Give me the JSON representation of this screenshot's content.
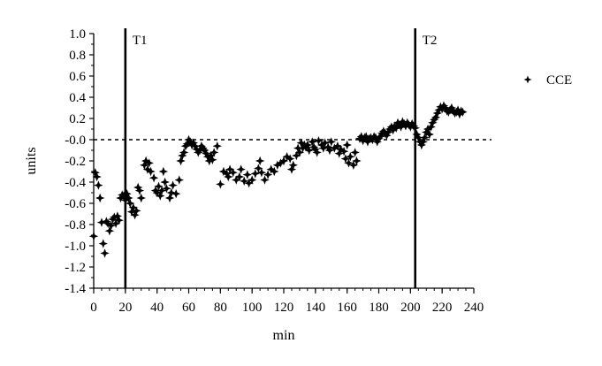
{
  "chart_data": {
    "type": "scatter",
    "xlabel": "min",
    "ylabel": "units",
    "xlim": [
      0,
      240
    ],
    "ylim": [
      -1.4,
      1.0
    ],
    "x_ticks": [
      "0",
      "20",
      "40",
      "60",
      "80",
      "100",
      "120",
      "140",
      "160",
      "180",
      "200",
      "220",
      "240"
    ],
    "y_ticks": [
      "1.0",
      "0.8",
      "0.6",
      "0.4",
      "0.2",
      "-0.0",
      "-0.2",
      "-0.4",
      "-0.6",
      "-0.8",
      "-1.0",
      "-1.2",
      "-1.4"
    ],
    "reference_line": {
      "y": 0.0,
      "style": "dotted"
    },
    "markers": [
      {
        "label": "T1",
        "x": 20
      },
      {
        "label": "T2",
        "x": 203
      }
    ],
    "legend_position": "right",
    "series": [
      {
        "name": "CCE",
        "color": "#000000",
        "marker": "four-point-star",
        "points": [
          [
            0,
            -0.91
          ],
          [
            1,
            -0.31
          ],
          [
            2,
            -0.35
          ],
          [
            3,
            -0.43
          ],
          [
            4,
            -0.55
          ],
          [
            5,
            -0.78
          ],
          [
            6,
            -0.98
          ],
          [
            7,
            -1.07
          ],
          [
            8,
            -0.77
          ],
          [
            9,
            -0.79
          ],
          [
            10,
            -0.86
          ],
          [
            11,
            -0.81
          ],
          [
            12,
            -0.75
          ],
          [
            13,
            -0.73
          ],
          [
            14,
            -0.79
          ],
          [
            15,
            -0.72
          ],
          [
            16,
            -0.76
          ],
          [
            17,
            -0.55
          ],
          [
            18,
            -0.52
          ],
          [
            19,
            -0.53
          ],
          [
            20,
            -0.57
          ],
          [
            21,
            -0.51
          ],
          [
            22,
            -0.55
          ],
          [
            23,
            -0.6
          ],
          [
            24,
            -0.68
          ],
          [
            25,
            -0.64
          ],
          [
            26,
            -0.71
          ],
          [
            27,
            -0.67
          ],
          [
            28,
            -0.45
          ],
          [
            29,
            -0.48
          ],
          [
            30,
            -0.55
          ],
          [
            32,
            -0.24
          ],
          [
            33,
            -0.2
          ],
          [
            34,
            -0.28
          ],
          [
            35,
            -0.22
          ],
          [
            36,
            -0.3
          ],
          [
            38,
            -0.36
          ],
          [
            39,
            -0.48
          ],
          [
            40,
            -0.5
          ],
          [
            41,
            -0.44
          ],
          [
            42,
            -0.53
          ],
          [
            43,
            -0.48
          ],
          [
            44,
            -0.3
          ],
          [
            45,
            -0.4
          ],
          [
            46,
            -0.46
          ],
          [
            48,
            -0.55
          ],
          [
            49,
            -0.5
          ],
          [
            50,
            -0.43
          ],
          [
            52,
            -0.51
          ],
          [
            54,
            -0.38
          ],
          [
            55,
            -0.2
          ],
          [
            56,
            -0.15
          ],
          [
            57,
            -0.12
          ],
          [
            58,
            -0.06
          ],
          [
            59,
            -0.04
          ],
          [
            60,
            0.0
          ],
          [
            61,
            -0.02
          ],
          [
            62,
            -0.05
          ],
          [
            63,
            -0.03
          ],
          [
            64,
            -0.06
          ],
          [
            65,
            -0.09
          ],
          [
            66,
            -0.12
          ],
          [
            67,
            -0.1
          ],
          [
            68,
            -0.06
          ],
          [
            69,
            -0.08
          ],
          [
            70,
            -0.1
          ],
          [
            71,
            -0.13
          ],
          [
            72,
            -0.16
          ],
          [
            73,
            -0.2
          ],
          [
            74,
            -0.15
          ],
          [
            75,
            -0.19
          ],
          [
            76,
            -0.12
          ],
          [
            78,
            -0.06
          ],
          [
            80,
            -0.42
          ],
          [
            82,
            -0.3
          ],
          [
            84,
            -0.32
          ],
          [
            85,
            -0.35
          ],
          [
            86,
            -0.28
          ],
          [
            88,
            -0.31
          ],
          [
            90,
            -0.38
          ],
          [
            92,
            -0.35
          ],
          [
            93,
            -0.28
          ],
          [
            95,
            -0.39
          ],
          [
            97,
            -0.33
          ],
          [
            98,
            -0.41
          ],
          [
            100,
            -0.38
          ],
          [
            102,
            -0.32
          ],
          [
            104,
            -0.27
          ],
          [
            105,
            -0.2
          ],
          [
            106,
            -0.31
          ],
          [
            108,
            -0.38
          ],
          [
            110,
            -0.33
          ],
          [
            112,
            -0.28
          ],
          [
            114,
            -0.3
          ],
          [
            116,
            -0.24
          ],
          [
            118,
            -0.22
          ],
          [
            120,
            -0.2
          ],
          [
            122,
            -0.16
          ],
          [
            124,
            -0.18
          ],
          [
            125,
            -0.28
          ],
          [
            126,
            -0.24
          ],
          [
            128,
            -0.15
          ],
          [
            129,
            -0.08
          ],
          [
            130,
            -0.12
          ],
          [
            131,
            -0.03
          ],
          [
            132,
            -0.08
          ],
          [
            133,
            -0.05
          ],
          [
            134,
            -0.07
          ],
          [
            135,
            -0.05
          ],
          [
            136,
            -0.1
          ],
          [
            138,
            -0.02
          ],
          [
            139,
            -0.07
          ],
          [
            140,
            -0.09
          ],
          [
            141,
            -0.12
          ],
          [
            142,
            -0.01
          ],
          [
            144,
            -0.05
          ],
          [
            145,
            -0.08
          ],
          [
            146,
            -0.03
          ],
          [
            148,
            -0.07
          ],
          [
            149,
            -0.1
          ],
          [
            150,
            -0.02
          ],
          [
            152,
            -0.08
          ],
          [
            154,
            -0.06
          ],
          [
            155,
            -0.13
          ],
          [
            156,
            -0.09
          ],
          [
            158,
            -0.11
          ],
          [
            159,
            -0.18
          ],
          [
            160,
            -0.05
          ],
          [
            161,
            -0.22
          ],
          [
            162,
            -0.16
          ],
          [
            164,
            -0.24
          ],
          [
            165,
            -0.12
          ],
          [
            166,
            -0.2
          ],
          [
            168,
            0.01
          ],
          [
            169,
            0.03
          ],
          [
            170,
            -0.01
          ],
          [
            171,
            0.02
          ],
          [
            172,
            0.03
          ],
          [
            173,
            -0.02
          ],
          [
            174,
            0.01
          ],
          [
            175,
            0.02
          ],
          [
            176,
            0.0
          ],
          [
            177,
            0.03
          ],
          [
            178,
            0.02
          ],
          [
            179,
            -0.02
          ],
          [
            180,
            0.01
          ],
          [
            181,
            0.03
          ],
          [
            182,
            0.06
          ],
          [
            183,
            0.08
          ],
          [
            184,
            0.06
          ],
          [
            185,
            0.04
          ],
          [
            186,
            0.07
          ],
          [
            187,
            0.1
          ],
          [
            188,
            0.12
          ],
          [
            189,
            0.09
          ],
          [
            190,
            0.13
          ],
          [
            191,
            0.11
          ],
          [
            192,
            0.16
          ],
          [
            193,
            0.14
          ],
          [
            194,
            0.12
          ],
          [
            195,
            0.17
          ],
          [
            196,
            0.15
          ],
          [
            197,
            0.13
          ],
          [
            198,
            0.16
          ],
          [
            199,
            0.14
          ],
          [
            200,
            0.12
          ],
          [
            201,
            0.15
          ],
          [
            202,
            0.13
          ],
          [
            203,
            0.11
          ],
          [
            204,
            0.05
          ],
          [
            205,
            0.02
          ],
          [
            206,
            -0.02
          ],
          [
            207,
            -0.05
          ],
          [
            208,
            -0.02
          ],
          [
            209,
            0.02
          ],
          [
            210,
            0.07
          ],
          [
            211,
            0.1
          ],
          [
            212,
            0.05
          ],
          [
            213,
            0.12
          ],
          [
            214,
            0.16
          ],
          [
            215,
            0.19
          ],
          [
            216,
            0.21
          ],
          [
            217,
            0.25
          ],
          [
            218,
            0.28
          ],
          [
            219,
            0.31
          ],
          [
            220,
            0.29
          ],
          [
            221,
            0.32
          ],
          [
            222,
            0.3
          ],
          [
            223,
            0.27
          ],
          [
            224,
            0.26
          ],
          [
            225,
            0.28
          ],
          [
            226,
            0.3
          ],
          [
            227,
            0.27
          ],
          [
            228,
            0.25
          ],
          [
            229,
            0.26
          ],
          [
            230,
            0.28
          ],
          [
            231,
            0.24
          ],
          [
            232,
            0.27
          ],
          [
            233,
            0.26
          ]
        ]
      }
    ]
  }
}
